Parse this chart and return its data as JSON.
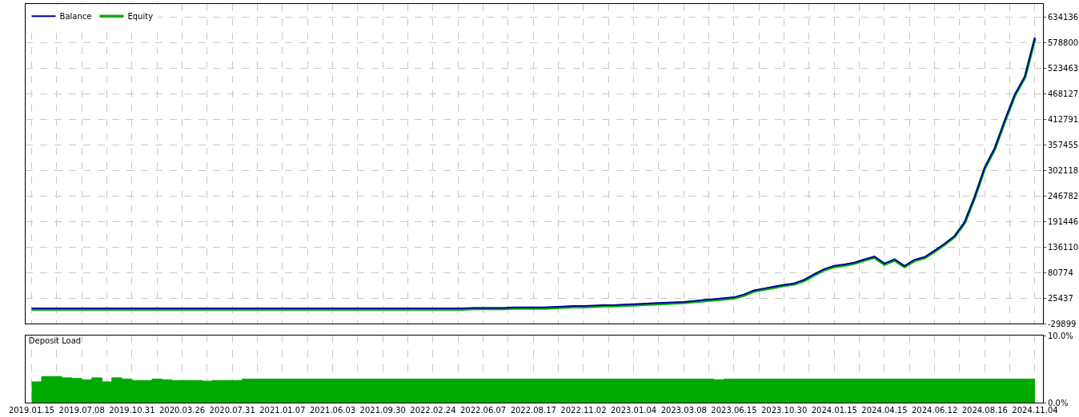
{
  "chart_data": [
    {
      "type": "line",
      "legend": "top left",
      "grid": true,
      "tick_labels": "y",
      "marker": "none",
      "categories": [
        "2019.01.15",
        null,
        null,
        null,
        null,
        "2019.07.08",
        null,
        null,
        null,
        null,
        "2019.10.31",
        null,
        null,
        null,
        null,
        "2020.03.26",
        null,
        null,
        null,
        null,
        "2020.07.31",
        null,
        null,
        null,
        null,
        "2021.01.07",
        null,
        null,
        null,
        null,
        "2021.06.03",
        null,
        null,
        null,
        null,
        "2021.09.30",
        null,
        null,
        null,
        null,
        "2022.02.24",
        null,
        null,
        null,
        null,
        "2022.06.07",
        null,
        null,
        null,
        null,
        "2022.08.17",
        null,
        null,
        null,
        null,
        "2022.11.02",
        null,
        null,
        null,
        null,
        "2023.01.04",
        null,
        null,
        null,
        null,
        "2023.03.08",
        null,
        null,
        null,
        null,
        "2023.06.15",
        null,
        null,
        null,
        null,
        "2023.10.30",
        null,
        null,
        null,
        null,
        "2024.01.15",
        null,
        null,
        null,
        null,
        "2024.04.15",
        null,
        null,
        null,
        null,
        "2024.06.12",
        null,
        null,
        null,
        null,
        "2024.08.16",
        null,
        null,
        null,
        null,
        "2024.11.04"
      ],
      "ylim": [
        -29899,
        661800
      ],
      "yticks": [
        -29899,
        25437,
        80774,
        136110,
        191446,
        246782,
        302118,
        357455,
        412791,
        468127,
        523463,
        578800,
        634136
      ],
      "series": [
        {
          "name": "Equity",
          "color": "#00b000",
          "values": [
            1000,
            1000,
            1000,
            1000,
            1000,
            1000,
            1000,
            1000,
            1000,
            1000,
            1000,
            1000,
            1000,
            1000,
            1000,
            1000,
            1000,
            1000,
            1000,
            1000,
            1000,
            1000,
            1000,
            1000,
            1000,
            1000,
            1000,
            1000,
            1000,
            1000,
            1000,
            1000,
            1000,
            1000,
            1000,
            1000,
            1000,
            1000,
            1000,
            1000,
            1000,
            1000,
            1000,
            1000,
            2000,
            2000,
            2000,
            2000,
            3000,
            3000,
            3000,
            3000,
            4000,
            5000,
            6000,
            6000,
            7000,
            8000,
            8000,
            9000,
            10000,
            11000,
            12000,
            13000,
            14000,
            15000,
            17000,
            19000,
            21000,
            23000,
            25000,
            31000,
            40000,
            44000,
            48000,
            52000,
            55000,
            63000,
            75000,
            86000,
            93000,
            96000,
            100000,
            107000,
            113000,
            98000,
            107000,
            93000,
            106000,
            112000,
            126000,
            141000,
            158000,
            188000,
            243000,
            306000,
            348000,
            408000,
            464000,
            503000,
            587000
          ]
        },
        {
          "name": "Balance",
          "color": "#0000a0",
          "values": [
            3000,
            3000,
            3000,
            3000,
            3000,
            3000,
            3000,
            3000,
            3000,
            3000,
            3000,
            3000,
            3000,
            3000,
            3000,
            3000,
            3000,
            3000,
            3000,
            3000,
            3000,
            3000,
            3000,
            3000,
            3000,
            3000,
            3000,
            3000,
            3000,
            3000,
            3000,
            3000,
            3000,
            3000,
            3000,
            3000,
            3000,
            3000,
            3000,
            3000,
            3000,
            3000,
            3000,
            3000,
            4000,
            4000,
            4000,
            4000,
            5000,
            5000,
            5000,
            5000,
            6000,
            7000,
            8000,
            8000,
            9000,
            10000,
            10000,
            11000,
            12000,
            13000,
            14000,
            15000,
            16000,
            17000,
            19000,
            21000,
            23000,
            25000,
            27000,
            33000,
            42000,
            46000,
            50000,
            54000,
            57000,
            65000,
            77000,
            88000,
            95000,
            98000,
            102000,
            109000,
            115000,
            100000,
            109000,
            95000,
            108000,
            114000,
            128000,
            143000,
            160000,
            190000,
            245000,
            308000,
            350000,
            410000,
            466000,
            505000,
            589000
          ]
        }
      ]
    },
    {
      "type": "area",
      "title": "Deposit Load",
      "grid": true,
      "categories": [
        "2019.01.15",
        null,
        null,
        null,
        null,
        "2019.07.08",
        null,
        null,
        null,
        null,
        "2019.10.31",
        null,
        null,
        null,
        null,
        "2020.03.26",
        null,
        null,
        null,
        null,
        "2020.07.31",
        null,
        null,
        null,
        null,
        "2021.01.07",
        null,
        null,
        null,
        null,
        "2021.06.03",
        null,
        null,
        null,
        null,
        "2021.09.30",
        null,
        null,
        null,
        null,
        "2022.02.24",
        null,
        null,
        null,
        null,
        "2022.06.07",
        null,
        null,
        null,
        null,
        "2022.08.17",
        null,
        null,
        null,
        null,
        "2022.11.02",
        null,
        null,
        null,
        null,
        "2023.01.04",
        null,
        null,
        null,
        null,
        "2023.03.08",
        null,
        null,
        null,
        null,
        "2023.06.15",
        null,
        null,
        null,
        null,
        "2023.10.30",
        null,
        null,
        null,
        null,
        "2024.01.15",
        null,
        null,
        null,
        null,
        "2024.04.15",
        null,
        null,
        null,
        null,
        "2024.06.12",
        null,
        null,
        null,
        null,
        "2024.08.16",
        null,
        null,
        null,
        null,
        "2024.11.04"
      ],
      "ylim": [
        0,
        10
      ],
      "yticks": [
        {
          "value": 0,
          "label": "0.0%"
        },
        {
          "value": 10,
          "label": "10.0%"
        }
      ],
      "series": [
        {
          "color": "#00aa00",
          "values": [
            3.1,
            3.9,
            3.9,
            3.7,
            3.6,
            3.4,
            3.7,
            3.1,
            3.7,
            3.5,
            3.3,
            3.3,
            3.5,
            3.4,
            3.3,
            3.3,
            3.3,
            3.2,
            3.3,
            3.3,
            3.3,
            3.5,
            3.5,
            3.5,
            3.5,
            3.5,
            3.5,
            3.5,
            3.5,
            3.5,
            3.5,
            3.5,
            3.5,
            3.5,
            3.5,
            3.5,
            3.5,
            3.5,
            3.5,
            3.5,
            3.5,
            3.5,
            3.5,
            3.5,
            3.5,
            3.5,
            3.5,
            3.5,
            3.5,
            3.5,
            3.5,
            3.5,
            3.5,
            3.5,
            3.5,
            3.5,
            3.5,
            3.5,
            3.5,
            3.5,
            3.5,
            3.5,
            3.5,
            3.5,
            3.5,
            3.5,
            3.5,
            3.5,
            3.4,
            3.5,
            3.5,
            3.5,
            3.5,
            3.5,
            3.5,
            3.5,
            3.5,
            3.5,
            3.5,
            3.5,
            3.5,
            3.5,
            3.5,
            3.5,
            3.5,
            3.5,
            3.5,
            3.5,
            3.5,
            3.5,
            3.5,
            3.5,
            3.5,
            3.5,
            3.5,
            3.5,
            3.5,
            3.5,
            3.5,
            3.5,
            3.5
          ]
        }
      ]
    }
  ]
}
